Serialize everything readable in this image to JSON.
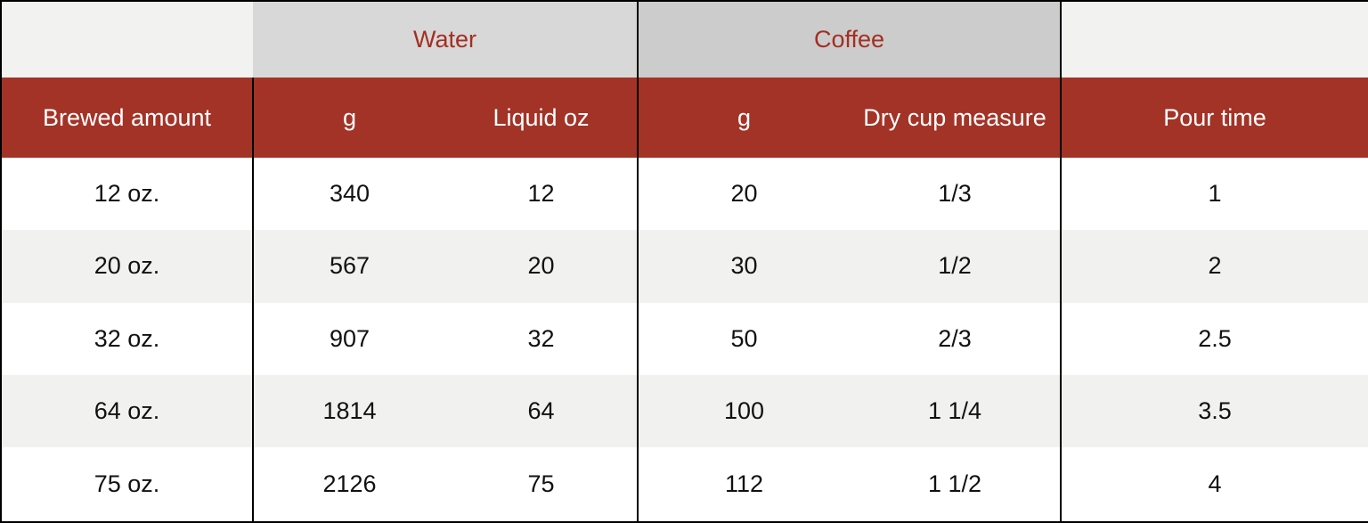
{
  "colors": {
    "header_bg": "#a33327",
    "header_text": "#ffffff",
    "band_water_bg": "#d8d8d8",
    "band_coffee_bg": "#cccccc",
    "band_text": "#a42e22",
    "corner_bg": "#f2f3f1",
    "row_alt_bg": "#f1f2f0",
    "border_color": "#000000",
    "cell_text": "#111111"
  },
  "chart_data": {
    "type": "table",
    "title": "",
    "column_groups": [
      {
        "label": "",
        "span": 1
      },
      {
        "label": "Water",
        "span": 2
      },
      {
        "label": "Coffee",
        "span": 2
      },
      {
        "label": "",
        "span": 1
      }
    ],
    "columns": [
      "Brewed amount",
      "g",
      "Liquid oz",
      "g",
      "Dry cup measure",
      "Pour time"
    ],
    "rows": [
      [
        "12 oz.",
        "340",
        "12",
        "20",
        "1/3",
        "1"
      ],
      [
        "20 oz.",
        "567",
        "20",
        "30",
        "1/2",
        "2"
      ],
      [
        "32 oz.",
        "907",
        "32",
        "50",
        "2/3",
        "2.5"
      ],
      [
        "64 oz.",
        "1814",
        "64",
        "100",
        "1 1/4",
        "3.5"
      ],
      [
        "75 oz.",
        "2126",
        "75",
        "112",
        "1 1/2",
        "4"
      ]
    ],
    "layout": {
      "zebra_striping": true,
      "group_separators_after_columns": [
        0,
        2,
        4
      ]
    }
  }
}
